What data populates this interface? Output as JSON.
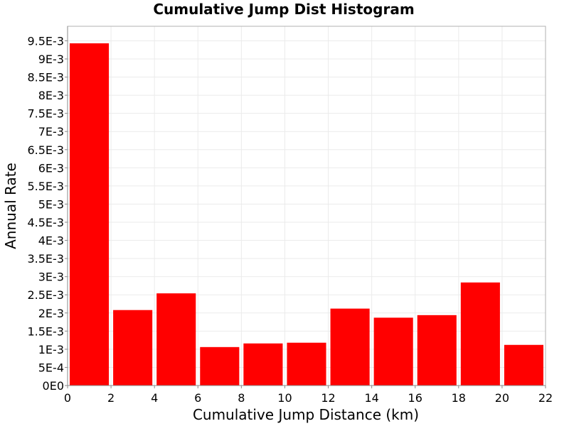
{
  "chart_data": {
    "type": "bar",
    "title": "Cumulative Jump Dist Histogram",
    "xlabel": "Cumulative Jump Distance (km)",
    "ylabel": "Annual Rate",
    "xlim": [
      0,
      22
    ],
    "ylim": [
      0,
      0.0099
    ],
    "grid": true,
    "bar_color": "#ff0000",
    "x_ticks": [
      0,
      2,
      4,
      6,
      8,
      10,
      12,
      14,
      16,
      18,
      20,
      22
    ],
    "x_tick_labels": [
      "0",
      "2",
      "4",
      "6",
      "8",
      "10",
      "12",
      "14",
      "16",
      "18",
      "20",
      "22"
    ],
    "y_ticks": [
      0,
      0.0005,
      0.001,
      0.0015,
      0.002,
      0.0025,
      0.003,
      0.0035,
      0.004,
      0.0045,
      0.005,
      0.0055,
      0.006,
      0.0065,
      0.007,
      0.0075,
      0.008,
      0.0085,
      0.009,
      0.0095
    ],
    "y_tick_labels": [
      "0E0",
      "5E-4",
      "1E-3",
      "1.5E-3",
      "2E-3",
      "2.5E-3",
      "3E-3",
      "3.5E-3",
      "4E-3",
      "4.5E-3",
      "5E-3",
      "5.5E-3",
      "6E-3",
      "6.5E-3",
      "7E-3",
      "7.5E-3",
      "8E-3",
      "8.5E-3",
      "9E-3",
      "9.5E-3"
    ],
    "bins": [
      {
        "x0": 0,
        "x1": 2,
        "value": 0.00943
      },
      {
        "x0": 2,
        "x1": 4,
        "value": 0.00208
      },
      {
        "x0": 4,
        "x1": 6,
        "value": 0.00254
      },
      {
        "x0": 6,
        "x1": 8,
        "value": 0.00106
      },
      {
        "x0": 8,
        "x1": 10,
        "value": 0.00116
      },
      {
        "x0": 10,
        "x1": 12,
        "value": 0.00118
      },
      {
        "x0": 12,
        "x1": 14,
        "value": 0.00212
      },
      {
        "x0": 14,
        "x1": 16,
        "value": 0.00187
      },
      {
        "x0": 16,
        "x1": 18,
        "value": 0.00194
      },
      {
        "x0": 18,
        "x1": 20,
        "value": 0.00284
      },
      {
        "x0": 20,
        "x1": 22,
        "value": 0.00112
      }
    ]
  }
}
